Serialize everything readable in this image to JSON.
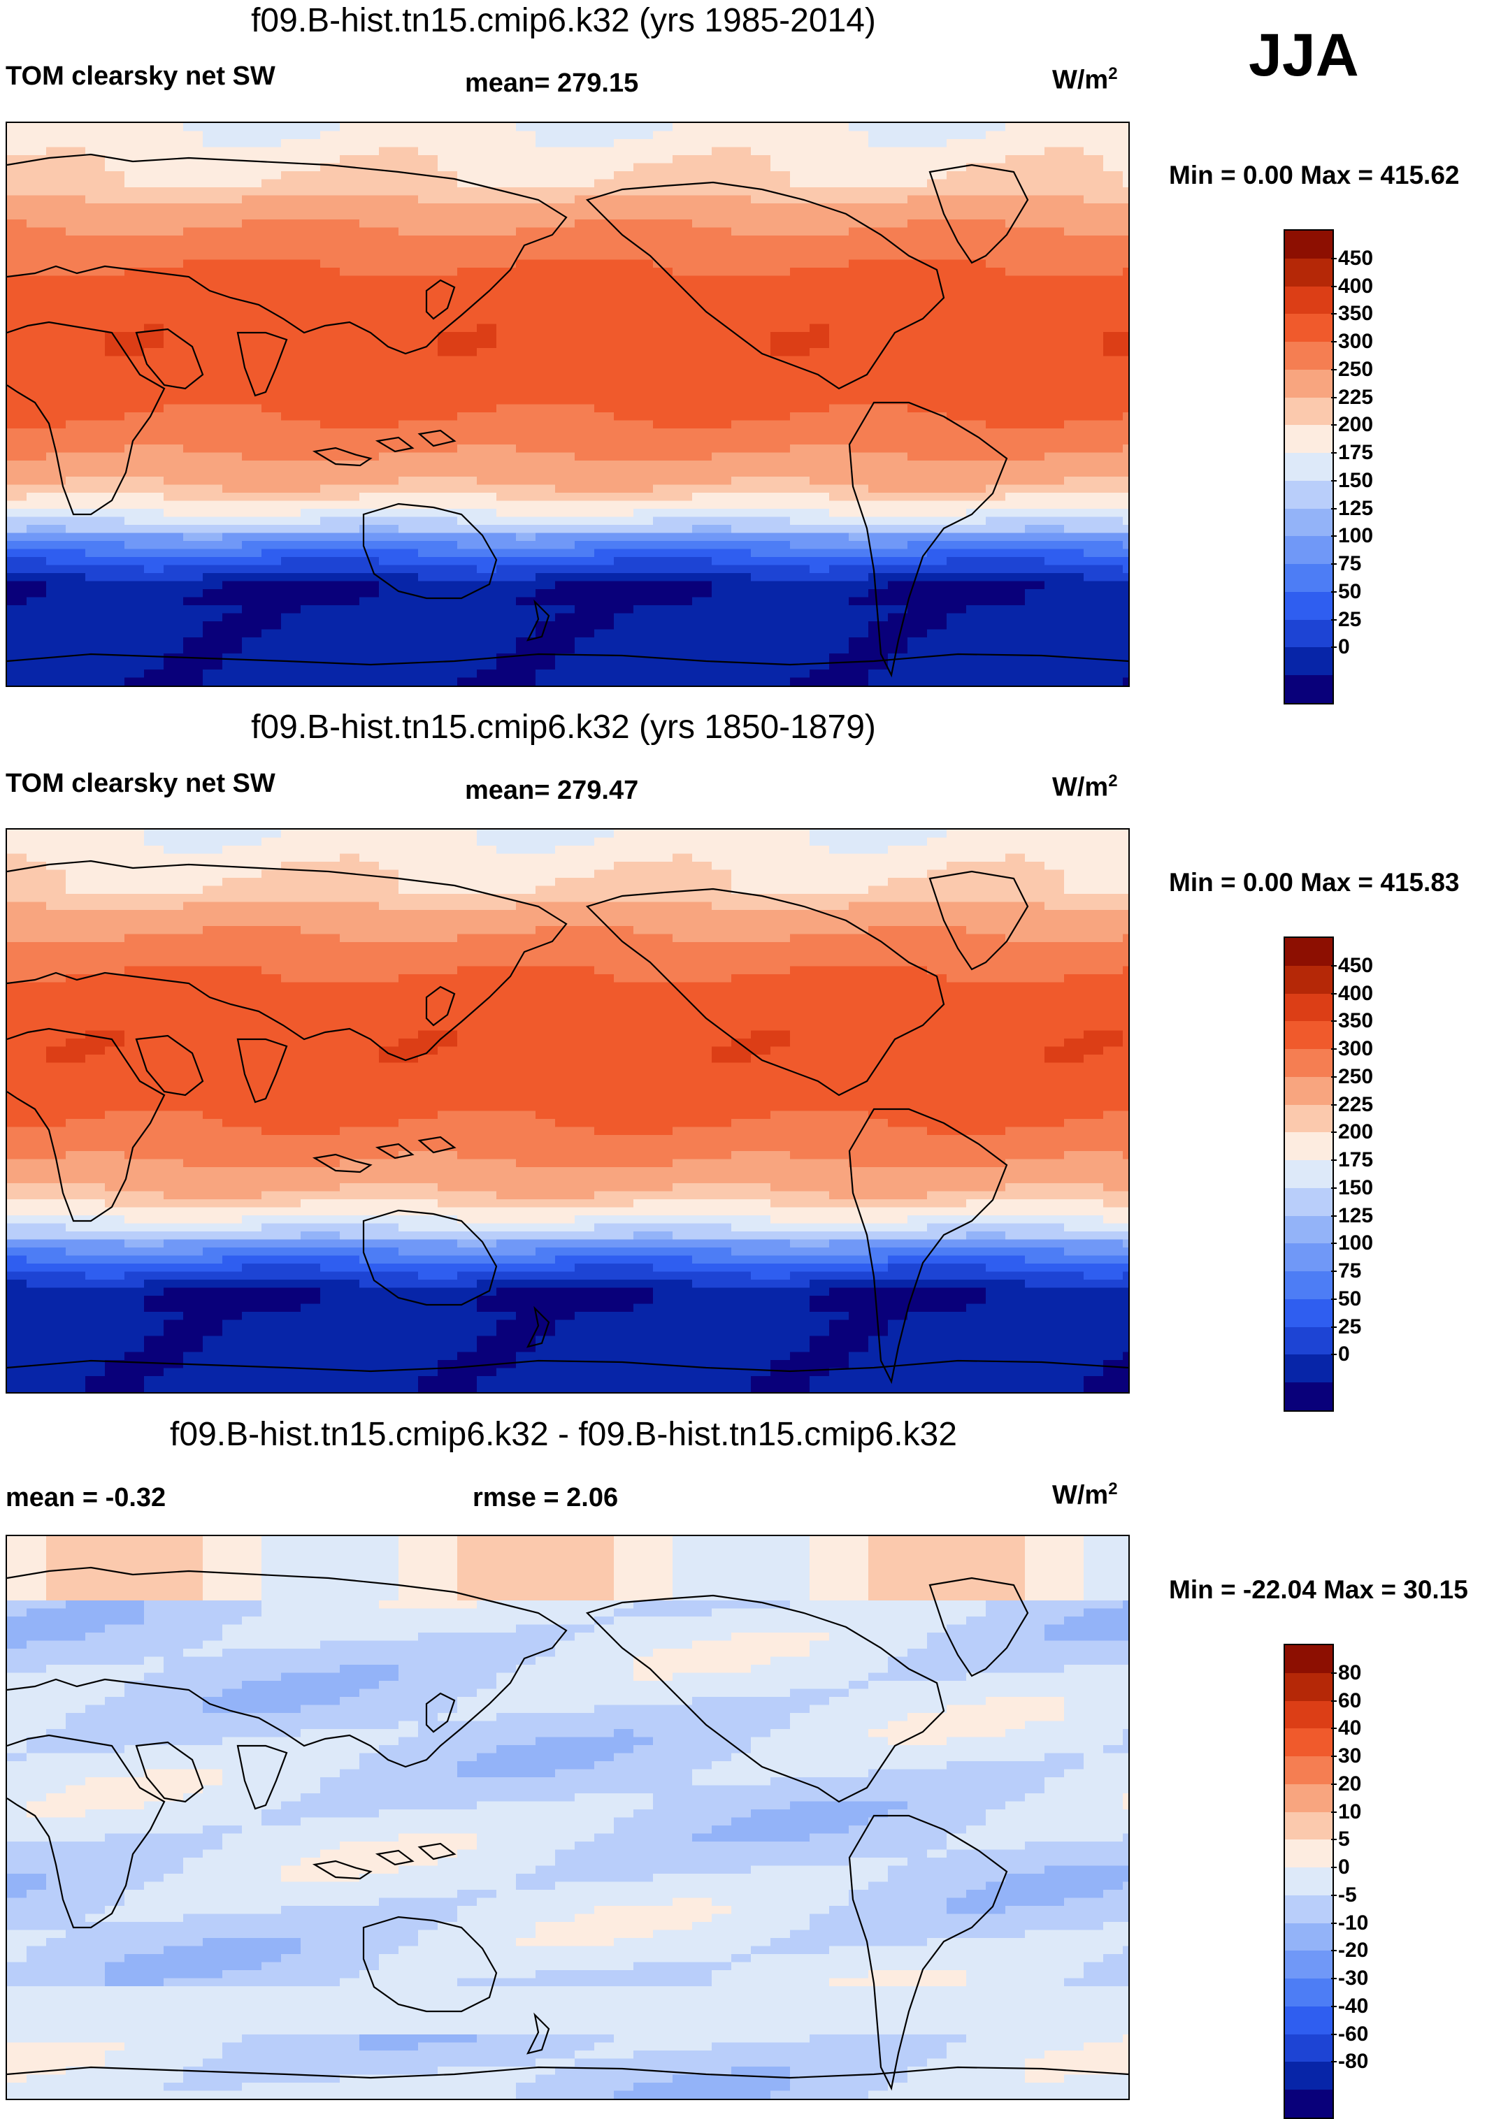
{
  "season": "JJA",
  "colors": {
    "abs_levels": [
      "#09007a",
      "#0725a8",
      "#1d44d4",
      "#2f5ef0",
      "#4d7df5",
      "#7098f7",
      "#93b3f8",
      "#b9cefa",
      "#dde9f9",
      "#fdece0",
      "#fbc9ad",
      "#f8a57f",
      "#f57e52",
      "#f05a2c",
      "#dc3e16",
      "#b52807",
      "#8d0f01"
    ],
    "diff_levels": [
      "#09007a",
      "#0725a8",
      "#1d44d4",
      "#2f5ef0",
      "#4d7df5",
      "#7098f7",
      "#93b3f8",
      "#b9cefa",
      "#dde9f9",
      "#fdece0",
      "#fbc9ad",
      "#f8a57f",
      "#f57e52",
      "#f05a2c",
      "#dc3e16",
      "#b52807",
      "#8d0f01"
    ]
  },
  "panels": [
    {
      "id": "panel-1",
      "title": "f09.B-hist.tn15.cmip6.k32 (yrs 1985-2014)",
      "left_label": "TOM clearsky net SW",
      "center_label": "mean= 279.15",
      "units": "W/m",
      "units_sup": "2",
      "min_label": "Min =   0.00",
      "max_label": "Max = 415.62",
      "colorbar_ticks": [
        "450",
        "400",
        "350",
        "300",
        "250",
        "225",
        "200",
        "175",
        "150",
        "125",
        "100",
        "75",
        "50",
        "25",
        "0"
      ],
      "field": "abs",
      "variant": 0
    },
    {
      "id": "panel-2",
      "title": "f09.B-hist.tn15.cmip6.k32 (yrs 1850-1879)",
      "left_label": "TOM clearsky net SW",
      "center_label": "mean= 279.47",
      "units": "W/m",
      "units_sup": "2",
      "min_label": "Min =   0.00",
      "max_label": "Max = 415.83",
      "colorbar_ticks": [
        "450",
        "400",
        "350",
        "300",
        "250",
        "225",
        "200",
        "175",
        "150",
        "125",
        "100",
        "75",
        "50",
        "25",
        "0"
      ],
      "field": "abs",
      "variant": 1
    },
    {
      "id": "panel-3",
      "title": "f09.B-hist.tn15.cmip6.k32 - f09.B-hist.tn15.cmip6.k32",
      "left_label": "mean =  -0.32",
      "center_label": "rmse =   2.06",
      "units": "W/m",
      "units_sup": "2",
      "min_label": "Min = -22.04",
      "max_label": "Max =  30.15",
      "colorbar_ticks": [
        "80",
        "60",
        "40",
        "30",
        "20",
        "10",
        "5",
        "0",
        "-5",
        "-10",
        "-20",
        "-30",
        "-40",
        "-60",
        "-80"
      ],
      "field": "diff",
      "variant": 2
    }
  ]
}
